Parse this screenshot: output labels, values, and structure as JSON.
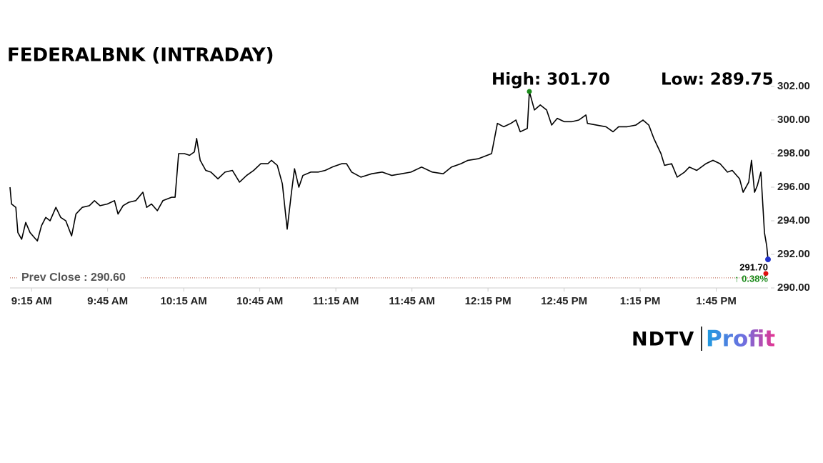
{
  "chart_data": {
    "type": "line",
    "title": "FEDERALBNK (INTRADAY)",
    "high_label": "High: 301.70",
    "low_label": "Low: 289.75",
    "prev_close": {
      "label": "Prev Close : 290.60",
      "value": 290.6
    },
    "last_label": "291.70",
    "change_label": "↑ 0.38%",
    "color": "#000000",
    "change_color": "#1a8a1a",
    "x": [
      546.5,
      547.1,
      548.8,
      549.6,
      551.1,
      552.7,
      554.4,
      556.1,
      557.3,
      558.9,
      560.6,
      562.3,
      564.6,
      566.5,
      568.5,
      570.8,
      572.5,
      575.0,
      577.8,
      579.8,
      582.0,
      584.9,
      587.7,
      589.1,
      591.1,
      593.3,
      596.1,
      598.9,
      600.4,
      602.3,
      604.6,
      606.8,
      610.2,
      611.6,
      613.0,
      615.3,
      617.3,
      619.2,
      620.1,
      621.5,
      623.7,
      625.7,
      628.5,
      631.3,
      634.2,
      637.0,
      639.8,
      642.6,
      645.4,
      648.2,
      649.6,
      651.9,
      653.9,
      655.8,
      657.5,
      658.7,
      660.4,
      662.0,
      665.1,
      668.0,
      670.8,
      673.6,
      677.3,
      679.2,
      681.2,
      684.9,
      689.1,
      693.3,
      697.0,
      700.9,
      704.6,
      708.8,
      713.0,
      717.3,
      720.6,
      724.3,
      727.1,
      731.3,
      736.4,
      738.7,
      741.2,
      744.0,
      746.0,
      747.7,
      750.5,
      751.3,
      753.3,
      755.6,
      758.1,
      760.1,
      762.3,
      765.1,
      768.0,
      770.8,
      773.6,
      774.2,
      777.8,
      781.5,
      784.3,
      786.5,
      789.9,
      793.3,
      796.1,
      798.4,
      800.4,
      803.2,
      804.6,
      807.4,
      809.6,
      812.5,
      814.4,
      817.3,
      820.9,
      823.7,
      826.5,
      829.4,
      831.3,
      834.2,
      835.6,
      837.8,
      838.9,
      840.1,
      841.2,
      842.6,
      843.5,
      844.0,
      844.9,
      845.4
    ],
    "values": [
      296.0,
      295.0,
      294.8,
      293.3,
      292.9,
      293.9,
      293.3,
      293.0,
      292.8,
      293.7,
      294.2,
      294.0,
      294.8,
      294.2,
      294.0,
      293.1,
      294.4,
      294.8,
      294.9,
      295.2,
      294.9,
      295.0,
      295.2,
      294.4,
      294.9,
      295.1,
      295.2,
      295.7,
      294.8,
      295.0,
      294.6,
      295.2,
      295.4,
      295.4,
      298.0,
      298.0,
      297.9,
      298.1,
      298.9,
      297.6,
      297.0,
      296.9,
      296.5,
      296.9,
      297.0,
      296.3,
      296.7,
      297.0,
      297.4,
      297.4,
      297.6,
      297.3,
      296.2,
      293.5,
      295.7,
      297.1,
      296.0,
      296.7,
      296.9,
      296.9,
      297.0,
      297.2,
      297.4,
      297.4,
      296.9,
      296.6,
      296.8,
      296.9,
      296.7,
      296.8,
      296.9,
      297.2,
      296.9,
      296.8,
      297.2,
      297.4,
      297.6,
      297.7,
      298.0,
      299.8,
      299.6,
      299.8,
      300.0,
      299.3,
      299.5,
      301.7,
      300.6,
      300.9,
      300.6,
      299.7,
      300.1,
      299.9,
      299.9,
      300.0,
      300.3,
      299.8,
      299.7,
      299.6,
      299.3,
      299.6,
      299.6,
      299.7,
      300.0,
      299.7,
      298.9,
      298.0,
      297.3,
      297.4,
      296.6,
      296.9,
      297.2,
      297.0,
      297.4,
      297.6,
      297.4,
      296.9,
      297.0,
      296.5,
      295.7,
      296.3,
      297.6,
      295.7,
      296.1,
      296.9,
      294.6,
      293.3,
      292.5,
      291.7
    ],
    "xlim": [
      546.5,
      845.4
    ],
    "xticks": [
      {
        "value": 555,
        "label": "9:15 AM"
      },
      {
        "value": 585,
        "label": "9:45 AM"
      },
      {
        "value": 615,
        "label": "10:15 AM"
      },
      {
        "value": 645,
        "label": "10:45 AM"
      },
      {
        "value": 675,
        "label": "11:15 AM"
      },
      {
        "value": 705,
        "label": "11:45 AM"
      },
      {
        "value": 735,
        "label": "12:15 PM"
      },
      {
        "value": 765,
        "label": "12:45 PM"
      },
      {
        "value": 795,
        "label": "1:15 PM"
      },
      {
        "value": 825,
        "label": "1:45 PM"
      }
    ],
    "ylim": [
      290,
      302
    ],
    "yticks": [
      {
        "value": 290,
        "label": "290.00"
      },
      {
        "value": 292,
        "label": "292.00"
      },
      {
        "value": 294,
        "label": "294.00"
      },
      {
        "value": 296,
        "label": "296.00"
      },
      {
        "value": 298,
        "label": "298.00"
      },
      {
        "value": 300,
        "label": "300.00"
      },
      {
        "value": 302,
        "label": "302.00"
      }
    ]
  },
  "brand": {
    "ndtv": "NDTV",
    "profit": "Profit"
  }
}
